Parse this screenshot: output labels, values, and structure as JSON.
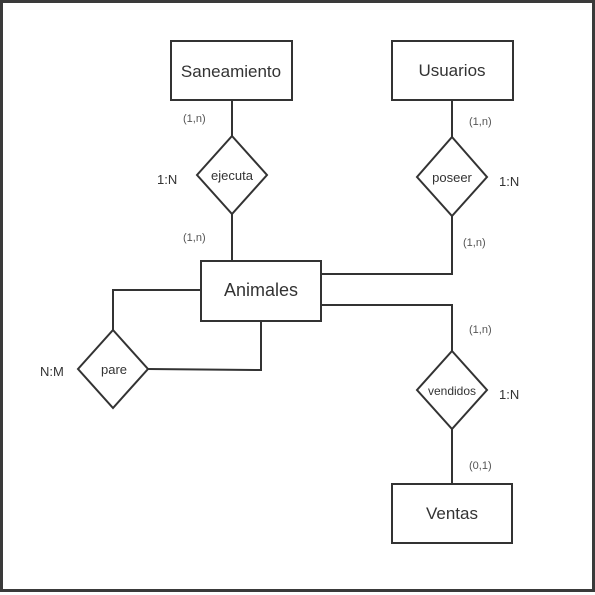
{
  "colors": {
    "stroke": "#333333",
    "text": "#333333",
    "background": "#ffffff"
  },
  "entities": {
    "saneamiento": "Saneamiento",
    "usuarios": "Usuarios",
    "animales": "Animales",
    "ventas": "Ventas"
  },
  "relationships": {
    "ejecuta": "ejecuta",
    "poseer": "poseer",
    "pare": "pare",
    "vendidos": "vendidos"
  },
  "cardinalities": {
    "saneamiento_ejecuta": "(1,n)",
    "ejecuta_animales": "(1,n)",
    "usuarios_poseer": "(1,n)",
    "poseer_animales": "(1,n)",
    "animales_vendidos": "(1,n)",
    "vendidos_ventas": "(0,1)"
  },
  "ratios": {
    "ejecuta": "1:N",
    "poseer": "1:N",
    "pare": "N:M",
    "vendidos": "1:N"
  }
}
